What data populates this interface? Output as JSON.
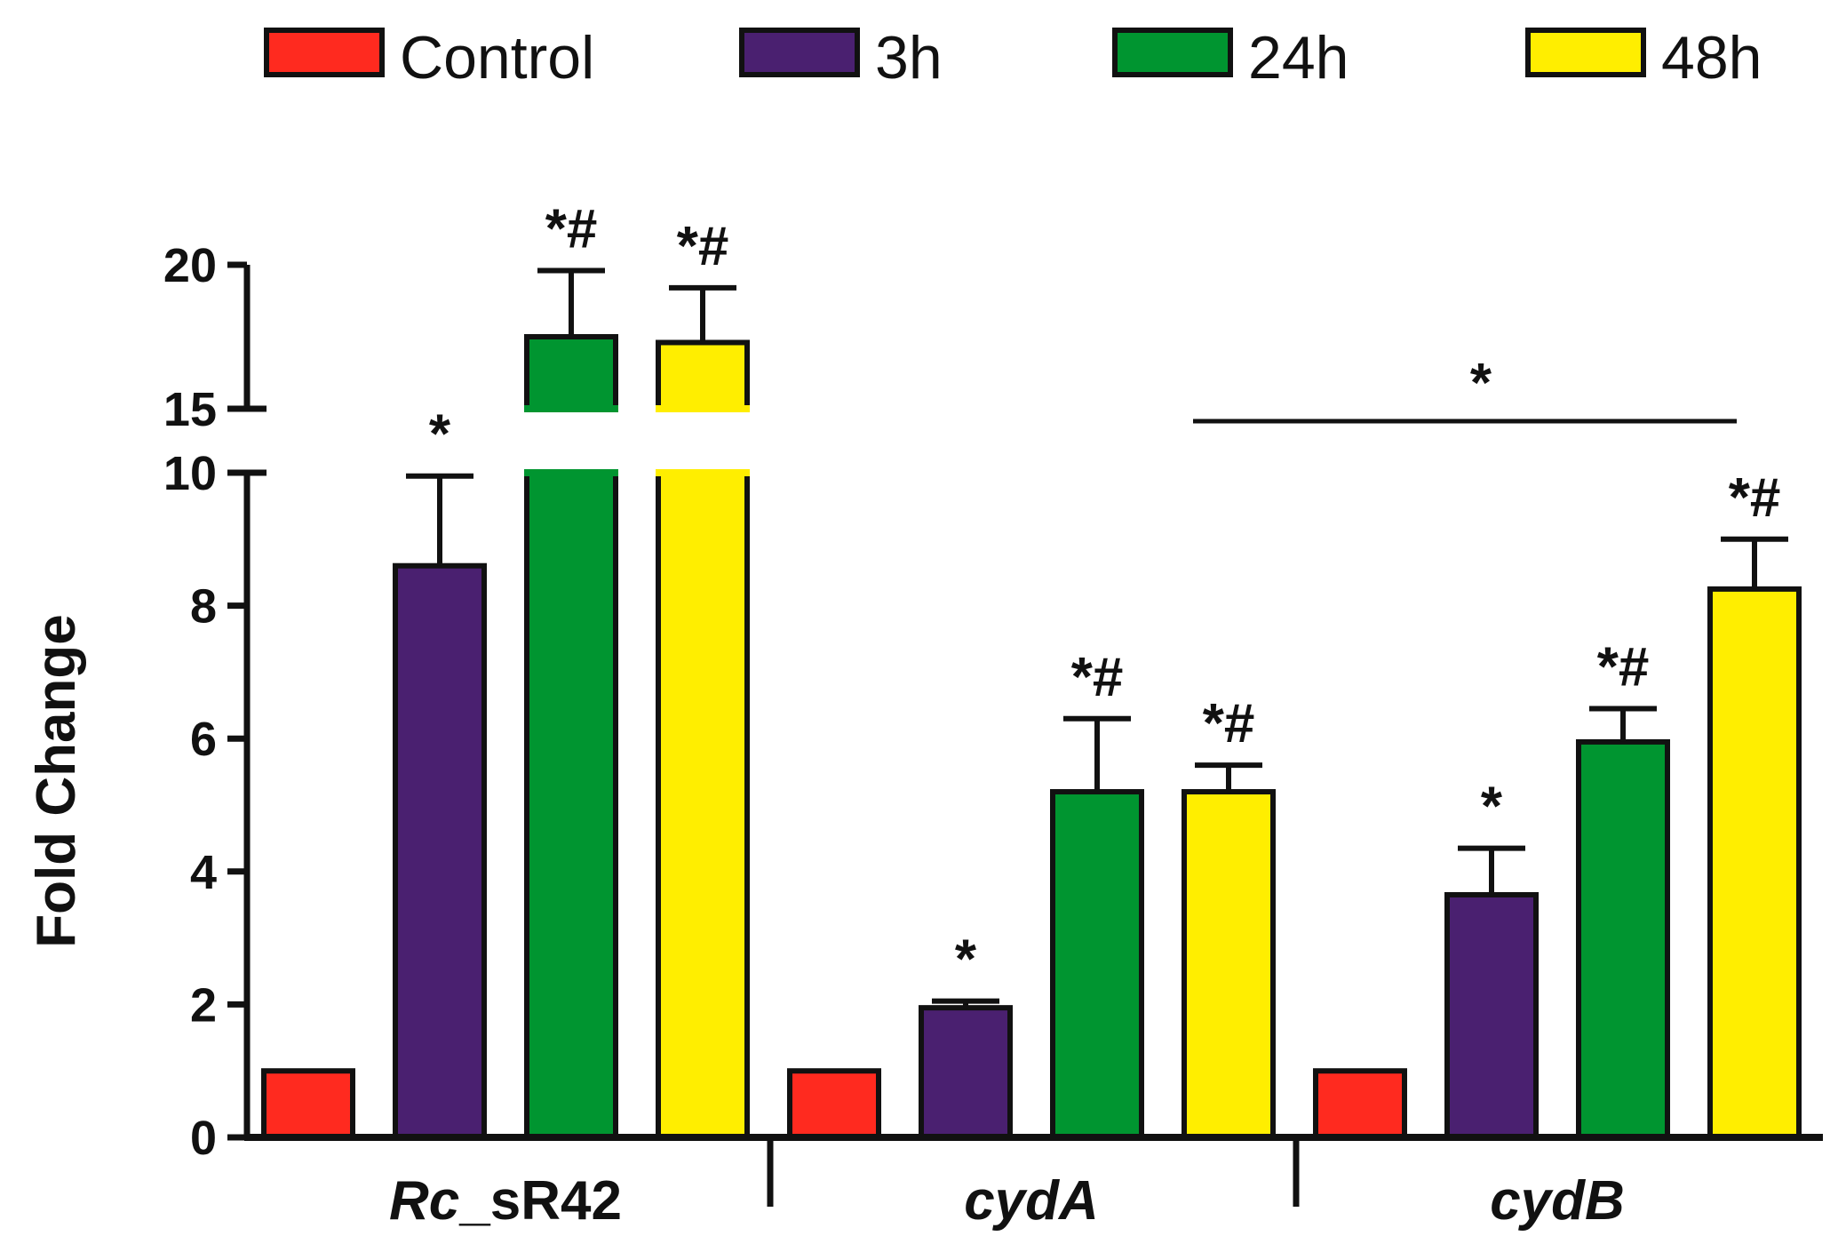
{
  "chart_data": {
    "type": "bar",
    "ylabel": "Fold Change",
    "categories": [
      "Rc_sR42",
      "cydA",
      "cydB"
    ],
    "category_label_parts": [
      [
        {
          "text": "Rc",
          "italic": true
        },
        {
          "text": "_sR42",
          "italic": false
        }
      ],
      [
        {
          "text": "cydA",
          "italic": true
        }
      ],
      [
        {
          "text": "cydB",
          "italic": true
        }
      ]
    ],
    "y_axis_break": {
      "lower_range": [
        0,
        10
      ],
      "upper_range": [
        15,
        20
      ]
    },
    "y_ticks_lower": [
      0,
      2,
      4,
      6,
      8,
      10
    ],
    "y_ticks_upper": [
      15,
      20
    ],
    "legend_position": "top",
    "series": [
      {
        "name": "Control",
        "color": "#ff2a1f",
        "values": [
          1,
          1,
          1
        ],
        "errors": [
          0,
          0,
          0
        ],
        "labels": [
          "",
          "",
          ""
        ]
      },
      {
        "name": "3h",
        "color": "#4a2070",
        "values": [
          8.6,
          1.95,
          3.65
        ],
        "errors": [
          1.35,
          0.1,
          0.7
        ],
        "labels": [
          "*",
          "*",
          "*"
        ]
      },
      {
        "name": "24h",
        "color": "#009530",
        "values": [
          17.5,
          5.2,
          5.95
        ],
        "errors": [
          2.3,
          1.1,
          0.5
        ],
        "labels": [
          "*#",
          "*#",
          "*#"
        ]
      },
      {
        "name": "48h",
        "color": "#ffee00",
        "values": [
          17.3,
          5.2,
          8.25
        ],
        "errors": [
          1.9,
          0.4,
          0.75
        ],
        "labels": [
          "*#",
          "*#",
          "*#"
        ]
      }
    ],
    "significance_bracket": {
      "label": "*",
      "from_category": "cydA",
      "to_category": "cydB"
    }
  }
}
